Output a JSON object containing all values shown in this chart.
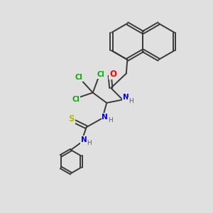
{
  "bg_color": "#e0e0e0",
  "bond_color": "#3a3a3a",
  "bond_width": 1.4,
  "atom_colors": {
    "O": "#ff0000",
    "N": "#0000ee",
    "S": "#bbbb00",
    "Cl": "#00aa00",
    "C": "#3a3a3a",
    "H": "#606060"
  },
  "figsize": [
    3.0,
    3.0
  ],
  "dpi": 100
}
